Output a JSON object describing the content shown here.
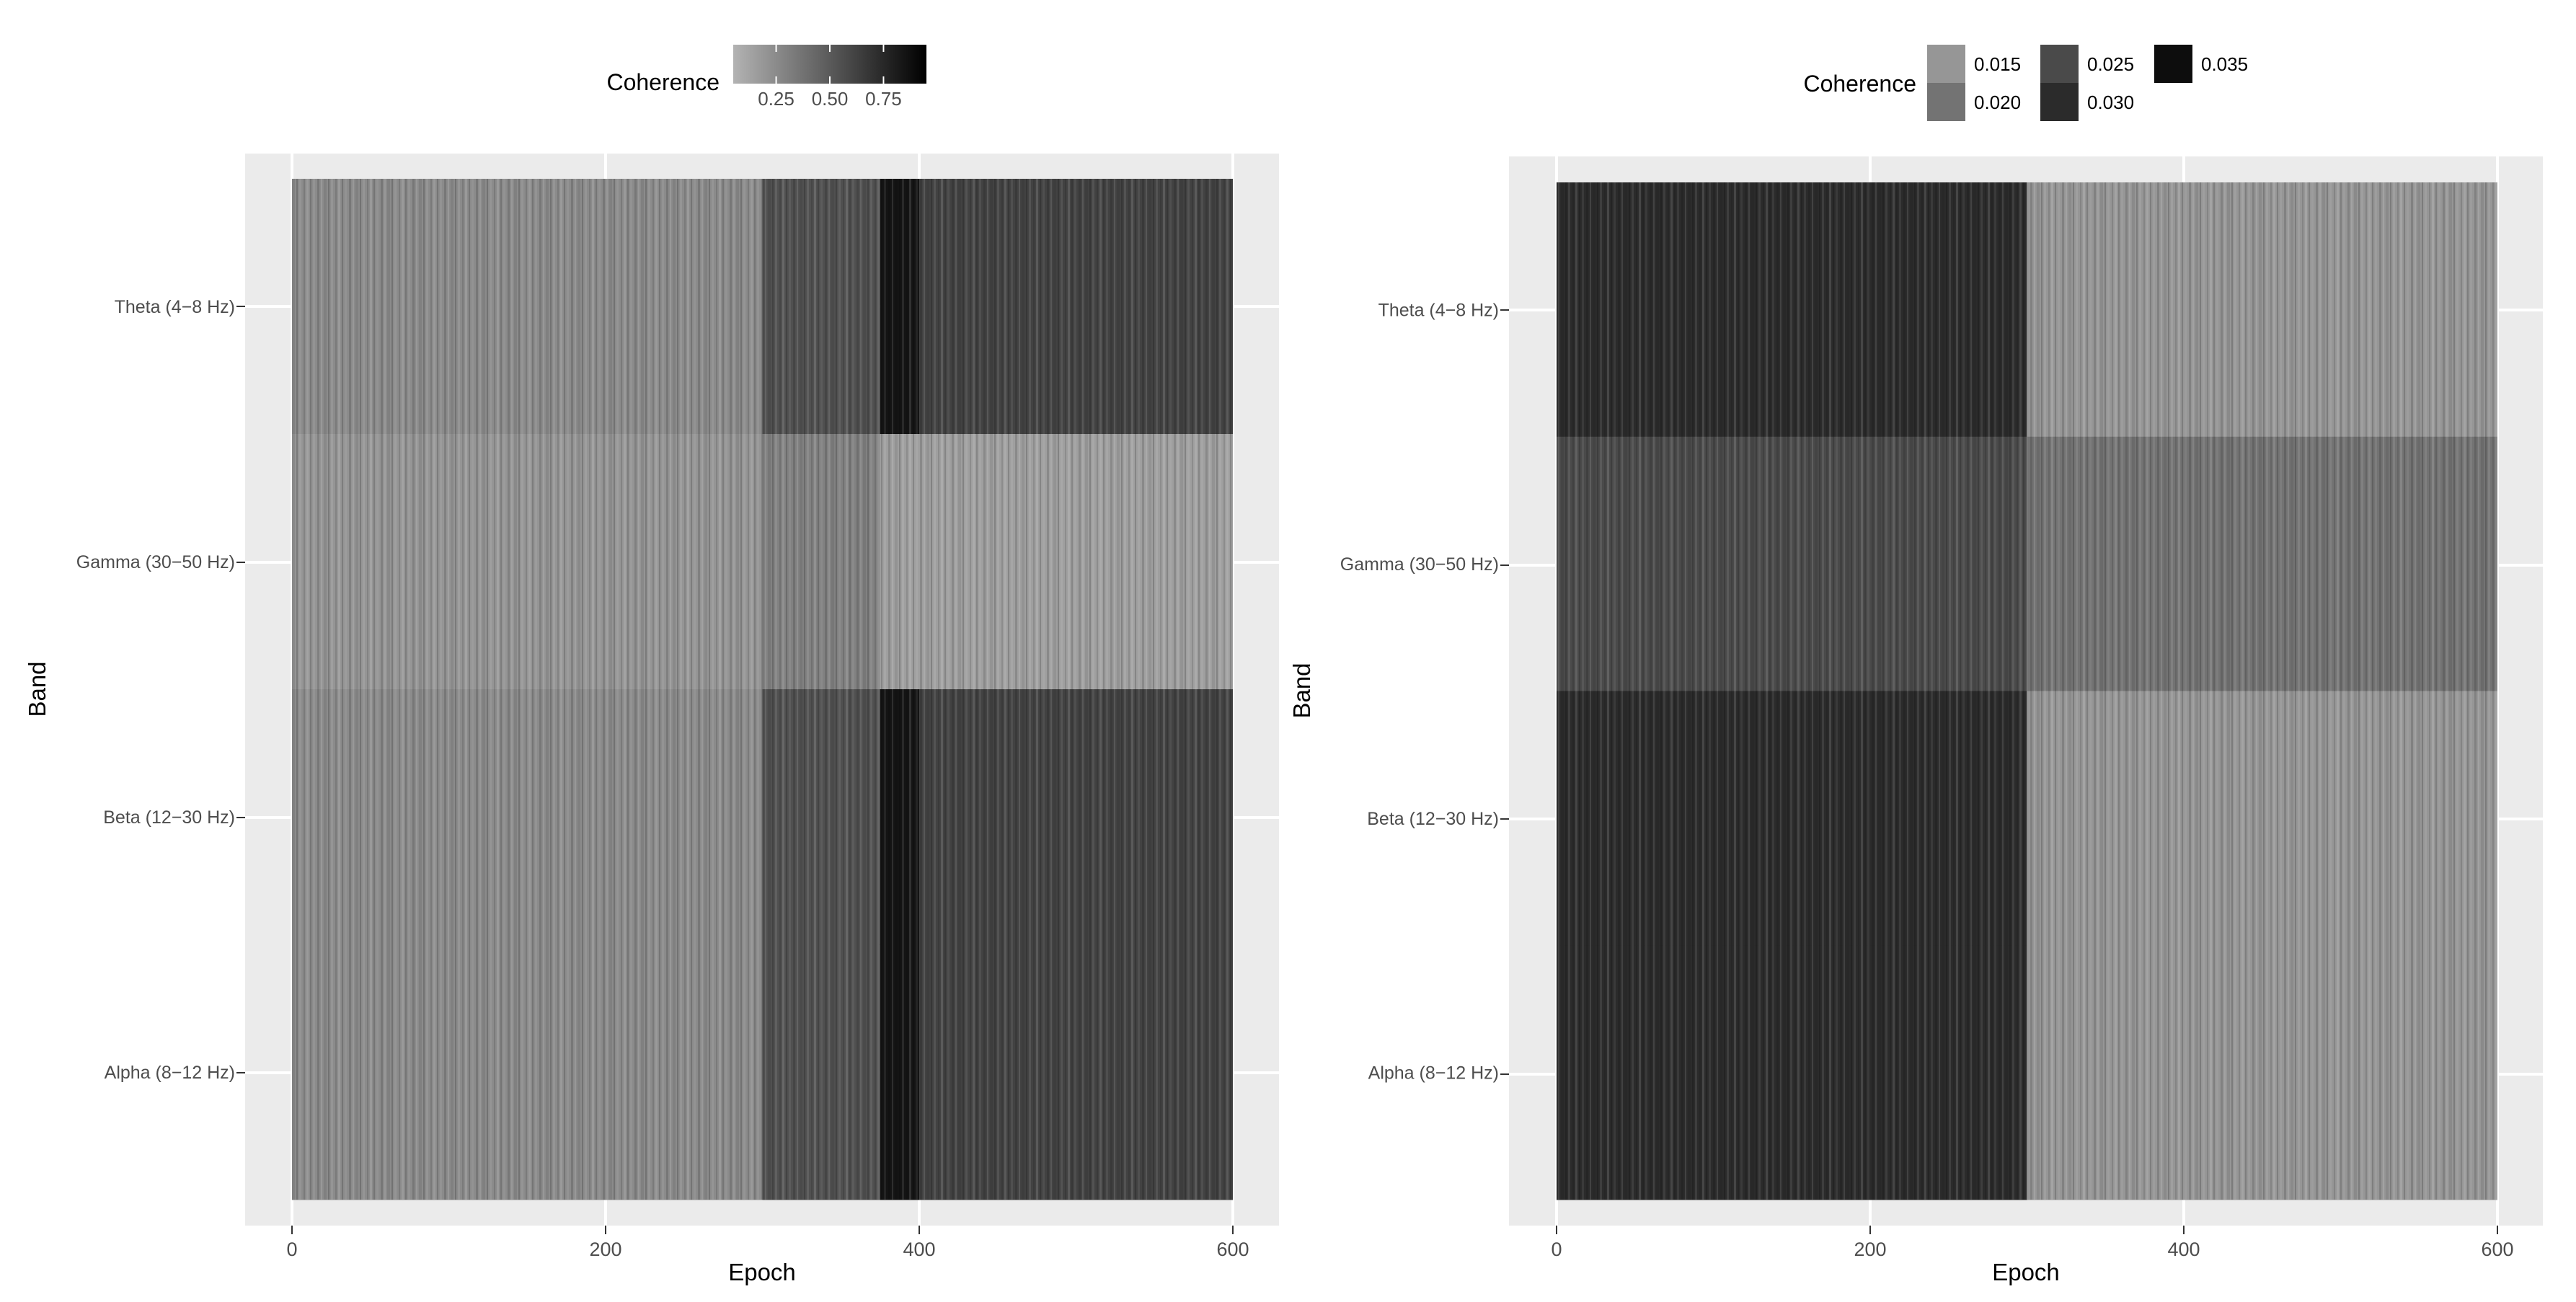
{
  "chart_data": [
    {
      "type": "heatmap",
      "title": "",
      "xlabel": "Epoch",
      "ylabel": "Band",
      "xlim": [
        0,
        600
      ],
      "x_ticks": [
        0,
        200,
        400,
        600
      ],
      "bands": [
        "Theta (4−8 Hz)",
        "Gamma (30−50 Hz)",
        "Beta (12−30 Hz)",
        "Alpha (8−12 Hz)"
      ],
      "legend": {
        "title": "Coherence",
        "kind": "continuous",
        "placement": "top",
        "range": [
          0.05,
          0.95
        ],
        "breaks": [
          0.25,
          0.5,
          0.75
        ],
        "break_labels": [
          "0.25",
          "0.50",
          "0.75"
        ],
        "low_color": "#b3b3b3",
        "high_color": "#000000"
      },
      "segments": [
        {
          "band": "Theta (4−8 Hz)",
          "epochs": [
            0,
            300
          ],
          "value": 0.25
        },
        {
          "band": "Theta (4−8 Hz)",
          "epochs": [
            300,
            375
          ],
          "value": 0.55
        },
        {
          "band": "Theta (4−8 Hz)",
          "epochs": [
            375,
            400
          ],
          "value": 0.85
        },
        {
          "band": "Theta (4−8 Hz)",
          "epochs": [
            400,
            600
          ],
          "value": 0.62
        },
        {
          "band": "Gamma (30−50 Hz)",
          "epochs": [
            0,
            300
          ],
          "value": 0.2
        },
        {
          "band": "Gamma (30−50 Hz)",
          "epochs": [
            300,
            375
          ],
          "value": 0.3
        },
        {
          "band": "Gamma (30−50 Hz)",
          "epochs": [
            375,
            600
          ],
          "value": 0.15
        },
        {
          "band": "Beta (12−30 Hz)",
          "epochs": [
            0,
            300
          ],
          "value": 0.25
        },
        {
          "band": "Beta (12−30 Hz)",
          "epochs": [
            300,
            375
          ],
          "value": 0.55
        },
        {
          "band": "Beta (12−30 Hz)",
          "epochs": [
            375,
            400
          ],
          "value": 0.85
        },
        {
          "band": "Beta (12−30 Hz)",
          "epochs": [
            400,
            600
          ],
          "value": 0.62
        },
        {
          "band": "Alpha (8−12 Hz)",
          "epochs": [
            0,
            300
          ],
          "value": 0.25
        },
        {
          "band": "Alpha (8−12 Hz)",
          "epochs": [
            300,
            375
          ],
          "value": 0.55
        },
        {
          "band": "Alpha (8−12 Hz)",
          "epochs": [
            375,
            400
          ],
          "value": 0.85
        },
        {
          "band": "Alpha (8−12 Hz)",
          "epochs": [
            400,
            600
          ],
          "value": 0.62
        }
      ]
    },
    {
      "type": "heatmap",
      "title": "",
      "xlabel": "Epoch",
      "ylabel": "Band",
      "xlim": [
        0,
        600
      ],
      "x_ticks": [
        0,
        200,
        400,
        600
      ],
      "bands": [
        "Theta (4−8 Hz)",
        "Gamma (30−50 Hz)",
        "Beta (12−30 Hz)",
        "Alpha (8−12 Hz)"
      ],
      "legend": {
        "title": "Coherence",
        "kind": "binned",
        "placement": "top",
        "bins": [
          {
            "label": "0.015",
            "value": 0.015,
            "color": "#969696"
          },
          {
            "label": "0.020",
            "value": 0.02,
            "color": "#737373"
          },
          {
            "label": "0.025",
            "value": 0.025,
            "color": "#4a4a4a"
          },
          {
            "label": "0.030",
            "value": 0.03,
            "color": "#2b2b2b"
          },
          {
            "label": "0.035",
            "value": 0.035,
            "color": "#0d0d0d"
          }
        ]
      },
      "segments": [
        {
          "band": "Theta (4−8 Hz)",
          "epochs": [
            0,
            300
          ],
          "value": 0.031
        },
        {
          "band": "Theta (4−8 Hz)",
          "epochs": [
            300,
            600
          ],
          "value": 0.016
        },
        {
          "band": "Gamma (30−50 Hz)",
          "epochs": [
            0,
            300
          ],
          "value": 0.027
        },
        {
          "band": "Gamma (30−50 Hz)",
          "epochs": [
            300,
            600
          ],
          "value": 0.022
        },
        {
          "band": "Beta (12−30 Hz)",
          "epochs": [
            0,
            300
          ],
          "value": 0.03
        },
        {
          "band": "Beta (12−30 Hz)",
          "epochs": [
            300,
            600
          ],
          "value": 0.017
        },
        {
          "band": "Alpha (8−12 Hz)",
          "epochs": [
            0,
            300
          ],
          "value": 0.03
        },
        {
          "band": "Alpha (8−12 Hz)",
          "epochs": [
            300,
            600
          ],
          "value": 0.016
        }
      ]
    }
  ]
}
